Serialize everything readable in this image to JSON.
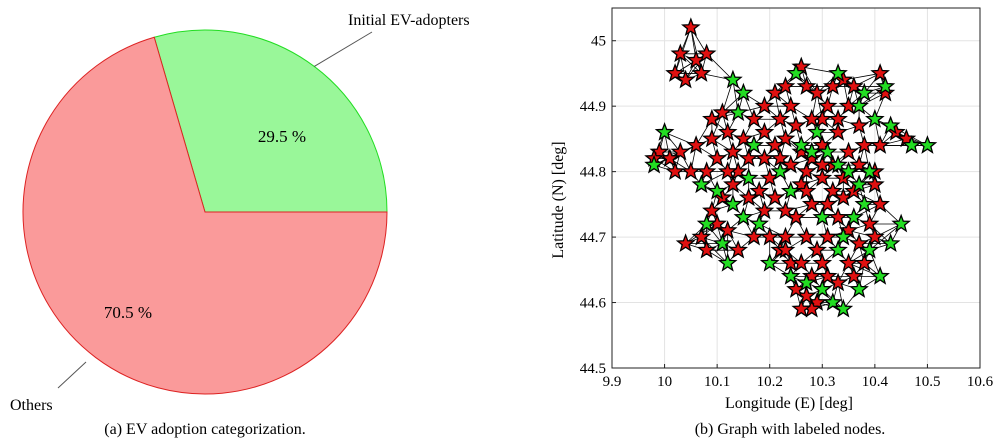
{
  "chart_data": [
    {
      "type": "pie",
      "slices": [
        {
          "label": "Initial EV-adopters",
          "value": 29.5,
          "pct_label": "29.5 %",
          "color": "#99f799",
          "edge": "#22dd22"
        },
        {
          "label": "Others",
          "value": 70.5,
          "pct_label": "70.5 %",
          "color": "#fa9a9a",
          "edge": "#dd2222"
        }
      ],
      "caption": "(a) EV adoption categorization."
    },
    {
      "type": "scatter",
      "xlabel": "Longitude (E) [deg]",
      "ylabel": "Latitude (N) [deg]",
      "xlim": [
        9.9,
        10.6
      ],
      "ylim": [
        44.5,
        45.05
      ],
      "xticks": [
        9.9,
        10,
        10.1,
        10.2,
        10.3,
        10.4,
        10.5,
        10.6
      ],
      "yticks": [
        44.5,
        44.6,
        44.7,
        44.8,
        44.9,
        45
      ],
      "grid": true,
      "colors": {
        "adopter": "#22dd22",
        "other": "#e01010",
        "edge": "#000000"
      },
      "caption": "(b) Graph with labeled nodes.",
      "series": [
        {
          "class": "adopter",
          "points": [
            [
              10.13,
              44.94
            ],
            [
              10.15,
              44.92
            ],
            [
              10.0,
              44.86
            ],
            [
              9.98,
              44.81
            ],
            [
              10.14,
              44.89
            ],
            [
              10.17,
              44.84
            ],
            [
              10.07,
              44.78
            ],
            [
              10.1,
              44.77
            ],
            [
              10.13,
              44.75
            ],
            [
              10.15,
              44.73
            ],
            [
              10.08,
              44.72
            ],
            [
              10.11,
              44.69
            ],
            [
              10.2,
              44.66
            ],
            [
              10.24,
              44.64
            ],
            [
              10.27,
              44.63
            ],
            [
              10.3,
              44.62
            ],
            [
              10.32,
              44.6
            ],
            [
              10.34,
              44.59
            ],
            [
              10.28,
              44.83
            ],
            [
              10.31,
              44.83
            ],
            [
              10.33,
              44.81
            ],
            [
              10.35,
              44.8
            ],
            [
              10.37,
              44.78
            ],
            [
              10.38,
              44.75
            ],
            [
              10.36,
              44.73
            ],
            [
              10.34,
              44.7
            ],
            [
              10.33,
              44.68
            ],
            [
              10.39,
              44.68
            ],
            [
              10.41,
              44.64
            ],
            [
              10.37,
              44.62
            ],
            [
              10.45,
              44.72
            ],
            [
              10.43,
              44.69
            ],
            [
              10.47,
              44.84
            ],
            [
              10.5,
              44.84
            ],
            [
              10.43,
              44.87
            ],
            [
              10.4,
              44.88
            ],
            [
              10.42,
              44.93
            ],
            [
              10.38,
              44.92
            ],
            [
              10.37,
              44.9
            ],
            [
              10.25,
              44.95
            ],
            [
              10.26,
              44.84
            ],
            [
              10.24,
              44.77
            ],
            [
              10.18,
              44.72
            ],
            [
              10.16,
              44.79
            ],
            [
              10.22,
              44.8
            ],
            [
              10.29,
              44.86
            ],
            [
              10.33,
              44.95
            ],
            [
              10.39,
              44.8
            ],
            [
              10.12,
              44.66
            ],
            [
              10.3,
              44.73
            ]
          ]
        },
        {
          "class": "other",
          "points": [
            [
              10.05,
              45.02
            ],
            [
              10.03,
              44.98
            ],
            [
              10.06,
              44.97
            ],
            [
              10.08,
              44.98
            ],
            [
              10.02,
              44.95
            ],
            [
              10.04,
              44.94
            ],
            [
              10.07,
              44.95
            ],
            [
              10.09,
              44.88
            ],
            [
              10.11,
              44.89
            ],
            [
              10.12,
              44.86
            ],
            [
              10.09,
              44.85
            ],
            [
              10.06,
              44.84
            ],
            [
              10.03,
              44.83
            ],
            [
              10.01,
              44.82
            ],
            [
              9.99,
              44.83
            ],
            [
              9.98,
              44.82
            ],
            [
              10.02,
              44.8
            ],
            [
              10.05,
              44.8
            ],
            [
              10.08,
              44.8
            ],
            [
              10.1,
              44.82
            ],
            [
              10.13,
              44.83
            ],
            [
              10.15,
              44.85
            ],
            [
              10.17,
              44.88
            ],
            [
              10.19,
              44.9
            ],
            [
              10.21,
              44.92
            ],
            [
              10.23,
              44.93
            ],
            [
              10.26,
              44.96
            ],
            [
              10.27,
              44.93
            ],
            [
              10.29,
              44.92
            ],
            [
              10.31,
              44.9
            ],
            [
              10.32,
              44.93
            ],
            [
              10.34,
              44.94
            ],
            [
              10.36,
              44.93
            ],
            [
              10.41,
              44.95
            ],
            [
              10.42,
              44.92
            ],
            [
              10.44,
              44.86
            ],
            [
              10.46,
              44.85
            ],
            [
              10.41,
              44.84
            ],
            [
              10.4,
              44.8
            ],
            [
              10.4,
              44.78
            ],
            [
              10.41,
              44.75
            ],
            [
              10.39,
              44.72
            ],
            [
              10.4,
              44.7
            ],
            [
              10.38,
              44.66
            ],
            [
              10.36,
              44.64
            ],
            [
              10.35,
              44.66
            ],
            [
              10.33,
              44.63
            ],
            [
              10.31,
              44.64
            ],
            [
              10.29,
              44.6
            ],
            [
              10.28,
              44.59
            ],
            [
              10.27,
              44.61
            ],
            [
              10.26,
              44.59
            ],
            [
              10.25,
              44.62
            ],
            [
              10.24,
              44.66
            ],
            [
              10.22,
              44.68
            ],
            [
              10.2,
              44.7
            ],
            [
              10.23,
              44.7
            ],
            [
              10.25,
              44.73
            ],
            [
              10.27,
              44.7
            ],
            [
              10.29,
              44.68
            ],
            [
              10.31,
              44.7
            ],
            [
              10.28,
              44.75
            ],
            [
              10.26,
              44.78
            ],
            [
              10.27,
              44.8
            ],
            [
              10.3,
              44.79
            ],
            [
              10.32,
              44.77
            ],
            [
              10.34,
              44.76
            ],
            [
              10.36,
              44.77
            ],
            [
              10.35,
              44.83
            ],
            [
              10.33,
              44.86
            ],
            [
              10.3,
              44.88
            ],
            [
              10.28,
              44.88
            ],
            [
              10.25,
              44.87
            ],
            [
              10.23,
              44.85
            ],
            [
              10.21,
              44.84
            ],
            [
              10.19,
              44.82
            ],
            [
              10.2,
              44.79
            ],
            [
              10.18,
              44.77
            ],
            [
              10.21,
              44.76
            ],
            [
              10.23,
              44.74
            ],
            [
              10.16,
              44.76
            ],
            [
              10.13,
              44.78
            ],
            [
              10.11,
              44.76
            ],
            [
              10.09,
              44.74
            ],
            [
              10.07,
              44.7
            ],
            [
              10.08,
              44.68
            ],
            [
              10.04,
              44.69
            ],
            [
              10.1,
              44.72
            ],
            [
              10.12,
              44.71
            ],
            [
              10.14,
              44.68
            ],
            [
              10.17,
              44.7
            ],
            [
              10.19,
              44.74
            ],
            [
              10.22,
              44.82
            ],
            [
              10.24,
              44.81
            ],
            [
              10.26,
              44.83
            ],
            [
              10.32,
              44.81
            ],
            [
              10.34,
              44.79
            ],
            [
              10.37,
              44.81
            ],
            [
              10.38,
              44.84
            ],
            [
              10.37,
              44.87
            ],
            [
              10.35,
              44.9
            ],
            [
              10.33,
              44.88
            ],
            [
              10.3,
              44.84
            ],
            [
              10.28,
              44.82
            ],
            [
              10.24,
              44.9
            ],
            [
              10.22,
              44.88
            ],
            [
              10.19,
              44.86
            ],
            [
              10.16,
              44.82
            ],
            [
              10.14,
              44.8
            ],
            [
              10.12,
              44.8
            ],
            [
              10.3,
              44.81
            ],
            [
              10.27,
              44.77
            ],
            [
              10.31,
              44.75
            ],
            [
              10.33,
              44.73
            ],
            [
              10.35,
              44.71
            ],
            [
              10.37,
              44.69
            ],
            [
              10.3,
              44.66
            ],
            [
              10.28,
              44.64
            ],
            [
              10.26,
              44.66
            ],
            [
              10.23,
              44.68
            ]
          ]
        }
      ]
    }
  ]
}
